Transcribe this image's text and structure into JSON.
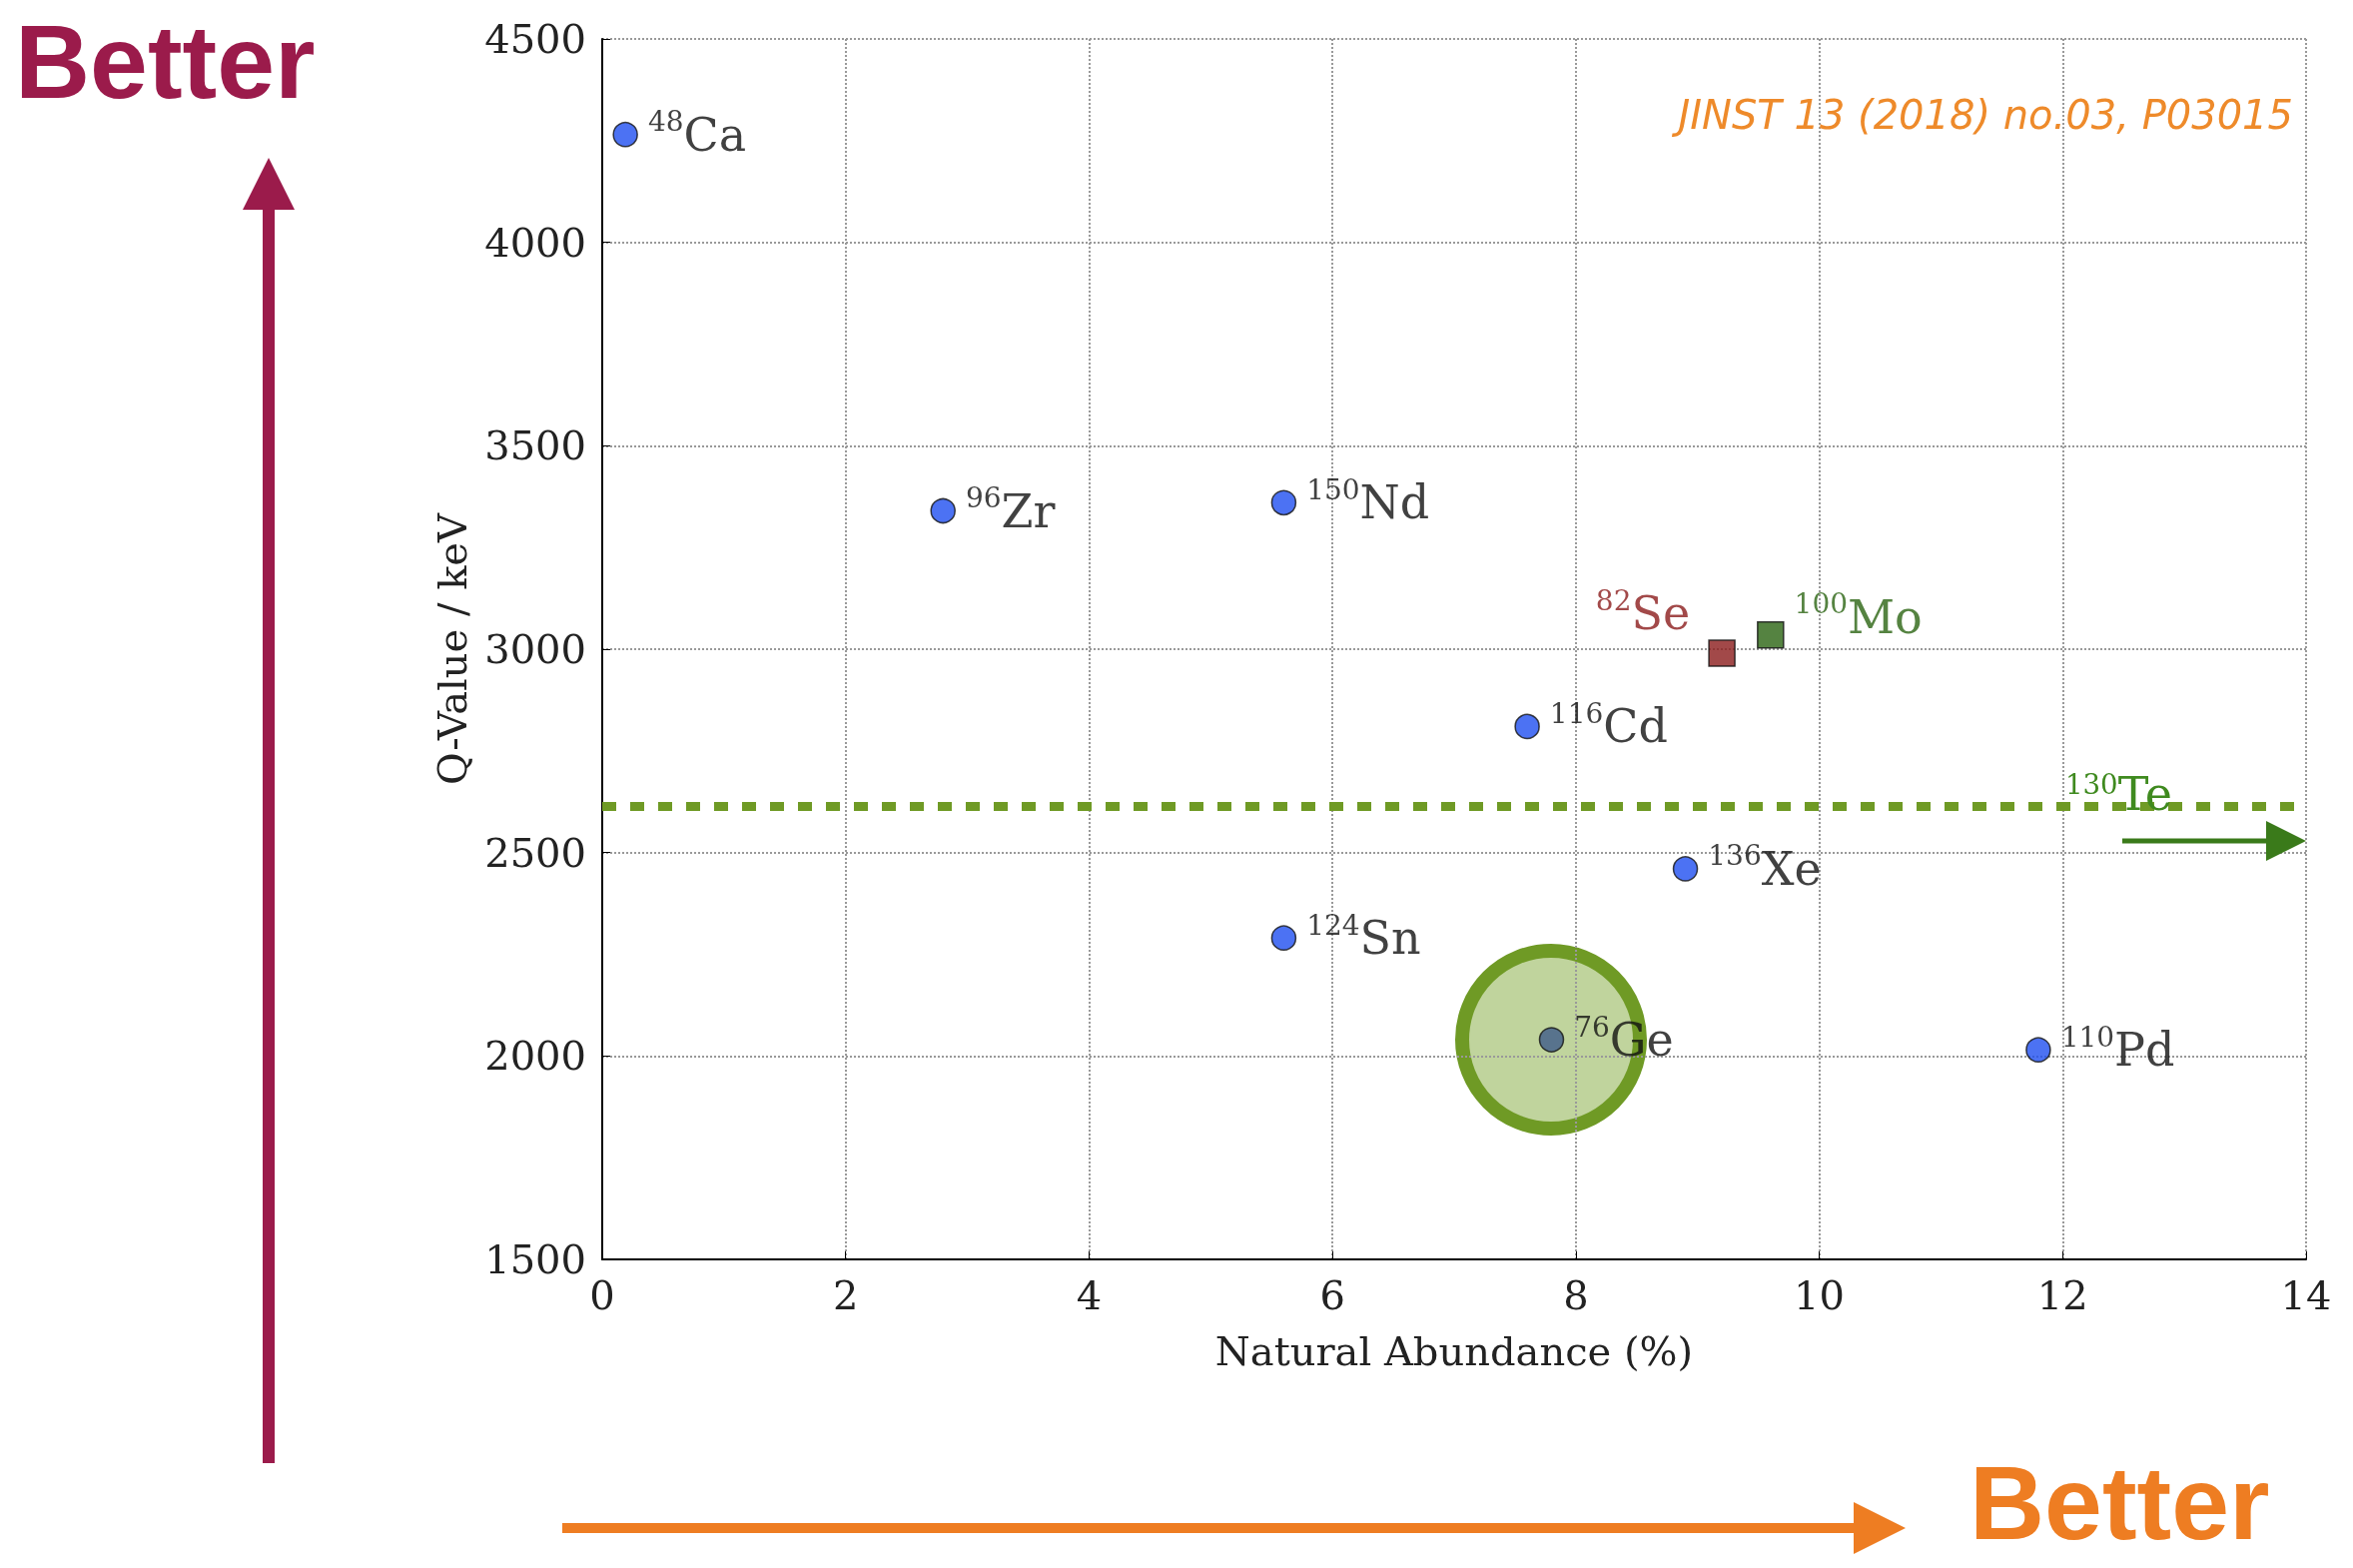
{
  "chart_data": {
    "type": "scatter",
    "xlabel": "Natural Abundance (%)",
    "ylabel": "Q-Value / keV",
    "xlim": [
      0,
      14
    ],
    "xticks": [
      0,
      2,
      4,
      6,
      8,
      10,
      12,
      14
    ],
    "ylim": [
      1500,
      4500
    ],
    "yticks": [
      1500,
      2000,
      2500,
      3000,
      3500,
      4000,
      4500
    ],
    "grid": true,
    "legend": false,
    "marker": "circle",
    "series": [
      {
        "name": "$^{48}$Ca",
        "color": "#1f4ff0",
        "x": [
          0.19
        ],
        "values": [
          4265
        ]
      },
      {
        "name": "$^{96}$Zr",
        "color": "#1f4ff0",
        "x": [
          2.8
        ],
        "values": [
          3340
        ]
      },
      {
        "name": "$^{150}$Nd",
        "color": "#1f4ff0",
        "x": [
          5.6
        ],
        "values": [
          3360
        ]
      },
      {
        "name": "$^{82}$Se",
        "color": "#8b1c1c",
        "marker": "square",
        "x": [
          9.2
        ],
        "values": [
          2990
        ]
      },
      {
        "name": "$^{100}$Mo",
        "color": "#2a6412",
        "marker": "square",
        "x": [
          9.6
        ],
        "values": [
          3035
        ]
      },
      {
        "name": "$^{116}$Cd",
        "color": "#1f4ff0",
        "x": [
          7.6
        ],
        "values": [
          2810
        ]
      },
      {
        "name": "$^{136}$Xe",
        "color": "#1f4ff0",
        "x": [
          8.9
        ],
        "values": [
          2460
        ]
      },
      {
        "name": "$^{124}$Sn",
        "color": "#1f4ff0",
        "x": [
          5.6
        ],
        "values": [
          2290
        ]
      },
      {
        "name": "$^{76}$Ge",
        "color": "#3d5a8a",
        "x": [
          7.8
        ],
        "values": [
          2040
        ]
      },
      {
        "name": "$^{110}$Pd",
        "color": "#1f4ff0",
        "x": [
          11.8
        ],
        "values": [
          2015
        ]
      }
    ],
    "ref_lines": [
      {
        "axis": "y",
        "value": 2615,
        "color": "#6f9a25",
        "line_style": "dashed"
      }
    ],
    "annotations": [
      "Better",
      "JINST 13 (2018) no.03, P03015",
      "Better",
      "$^{130}$Te"
    ]
  }
}
